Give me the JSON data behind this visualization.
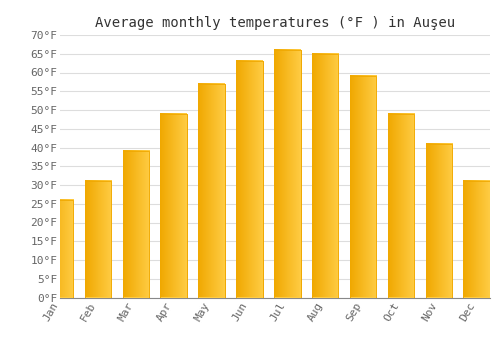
{
  "title": "Average monthly temperatures (°F ) in Auşeu",
  "months": [
    "Jan",
    "Feb",
    "Mar",
    "Apr",
    "May",
    "Jun",
    "Jul",
    "Aug",
    "Sep",
    "Oct",
    "Nov",
    "Dec"
  ],
  "values": [
    26,
    31,
    39,
    49,
    57,
    63,
    66,
    65,
    59,
    49,
    41,
    31
  ],
  "bar_color_light": "#FFCC44",
  "bar_color_dark": "#F0A800",
  "background_color": "#FFFFFF",
  "grid_color": "#DDDDDD",
  "ylim": [
    0,
    70
  ],
  "yticks": [
    0,
    5,
    10,
    15,
    20,
    25,
    30,
    35,
    40,
    45,
    50,
    55,
    60,
    65,
    70
  ],
  "ylabel_suffix": "°F",
  "title_fontsize": 10,
  "tick_fontsize": 8,
  "font_family": "monospace"
}
